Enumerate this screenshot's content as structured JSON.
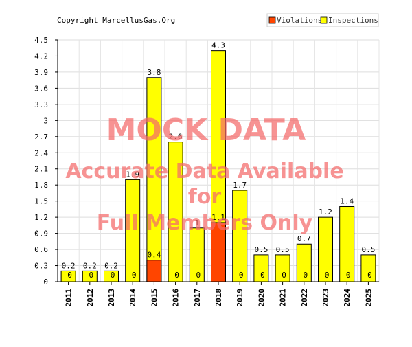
{
  "copyright": "Copyright MarcellusGas.Org",
  "watermark": {
    "line1": "MOCK DATA",
    "line2": "Accurate Data Available",
    "line3": "for",
    "line4": "Full Members Only",
    "color": "#f46a6a"
  },
  "chart_data": {
    "type": "bar",
    "title": "",
    "xlabel": "",
    "ylabel": "",
    "categories": [
      "2011",
      "2012",
      "2013",
      "2014",
      "2015",
      "2016",
      "2017",
      "2018",
      "2019",
      "2020",
      "2021",
      "2022",
      "2023",
      "2024",
      "2025"
    ],
    "series": [
      {
        "name": "Violations",
        "color": "#ff4500",
        "values": [
          0,
          0,
          0,
          0,
          0.4,
          0,
          0,
          1.1,
          0,
          0,
          0,
          0,
          0,
          0,
          0
        ],
        "labels": [
          "0",
          "0",
          "0",
          "0",
          "0.4",
          "0",
          "0",
          "1.1",
          "0",
          "0",
          "0",
          "0",
          "0",
          "0",
          "0"
        ]
      },
      {
        "name": "Inspections",
        "color": "#ffff00",
        "values": [
          0.2,
          0.2,
          0.2,
          1.9,
          3.8,
          2.6,
          1,
          4.3,
          1.7,
          0.5,
          0.5,
          0.7,
          1.2,
          1.4,
          0.5
        ],
        "labels": [
          "0.2",
          "0.2",
          "0.2",
          "1.9",
          "3.8",
          "2.6",
          "1",
          "4.3",
          "1.7",
          "0.5",
          "0.5",
          "0.7",
          "1.2",
          "1.4",
          "0.5"
        ]
      }
    ],
    "ylim": [
      0,
      4.5
    ],
    "yticks": [
      "0",
      "0.3",
      "0.6",
      "0.9",
      "1.2",
      "1.5",
      "1.8",
      "2.1",
      "2.4",
      "2.7",
      "3",
      "3.3",
      "3.6",
      "3.9",
      "4.2",
      "4.5"
    ],
    "grid": true,
    "legend_position": "top-right"
  }
}
